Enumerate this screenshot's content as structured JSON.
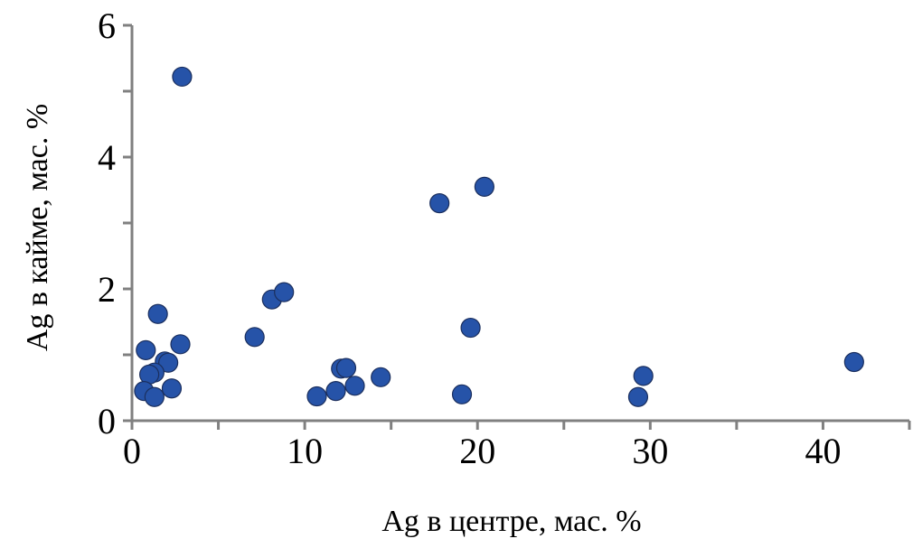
{
  "chart_data": {
    "type": "scatter",
    "title": "",
    "xlabel": "Ag в центре, мас. %",
    "ylabel": "Ag в кайме, мас. %",
    "xlim": [
      0,
      45
    ],
    "ylim": [
      0,
      6
    ],
    "x_major_ticks": [
      0,
      10,
      20,
      30,
      40
    ],
    "x_minor_ticks": [
      5,
      15,
      25,
      35,
      45
    ],
    "y_major_ticks": [
      0,
      2,
      4,
      6
    ],
    "y_minor_ticks": [
      1,
      3,
      5
    ],
    "grid": false,
    "legend": "none",
    "colors": {
      "marker": "#2653A8",
      "marker_edge": "#1b2f5e",
      "axis": "#808080"
    },
    "points": [
      {
        "x": 2.9,
        "y": 5.22
      },
      {
        "x": 17.8,
        "y": 3.3
      },
      {
        "x": 20.4,
        "y": 3.55
      },
      {
        "x": 8.1,
        "y": 1.84
      },
      {
        "x": 8.8,
        "y": 1.95
      },
      {
        "x": 7.1,
        "y": 1.27
      },
      {
        "x": 19.6,
        "y": 1.41
      },
      {
        "x": 1.5,
        "y": 1.62
      },
      {
        "x": 0.8,
        "y": 1.07
      },
      {
        "x": 2.8,
        "y": 1.16
      },
      {
        "x": 1.9,
        "y": 0.9
      },
      {
        "x": 2.1,
        "y": 0.88
      },
      {
        "x": 1.3,
        "y": 0.73
      },
      {
        "x": 1.0,
        "y": 0.7
      },
      {
        "x": 0.7,
        "y": 0.45
      },
      {
        "x": 1.3,
        "y": 0.36
      },
      {
        "x": 2.3,
        "y": 0.49
      },
      {
        "x": 12.1,
        "y": 0.79
      },
      {
        "x": 12.4,
        "y": 0.8
      },
      {
        "x": 11.8,
        "y": 0.45
      },
      {
        "x": 10.7,
        "y": 0.37
      },
      {
        "x": 12.9,
        "y": 0.53
      },
      {
        "x": 14.4,
        "y": 0.66
      },
      {
        "x": 19.1,
        "y": 0.4
      },
      {
        "x": 29.3,
        "y": 0.36
      },
      {
        "x": 29.6,
        "y": 0.68
      },
      {
        "x": 41.8,
        "y": 0.89
      }
    ]
  }
}
